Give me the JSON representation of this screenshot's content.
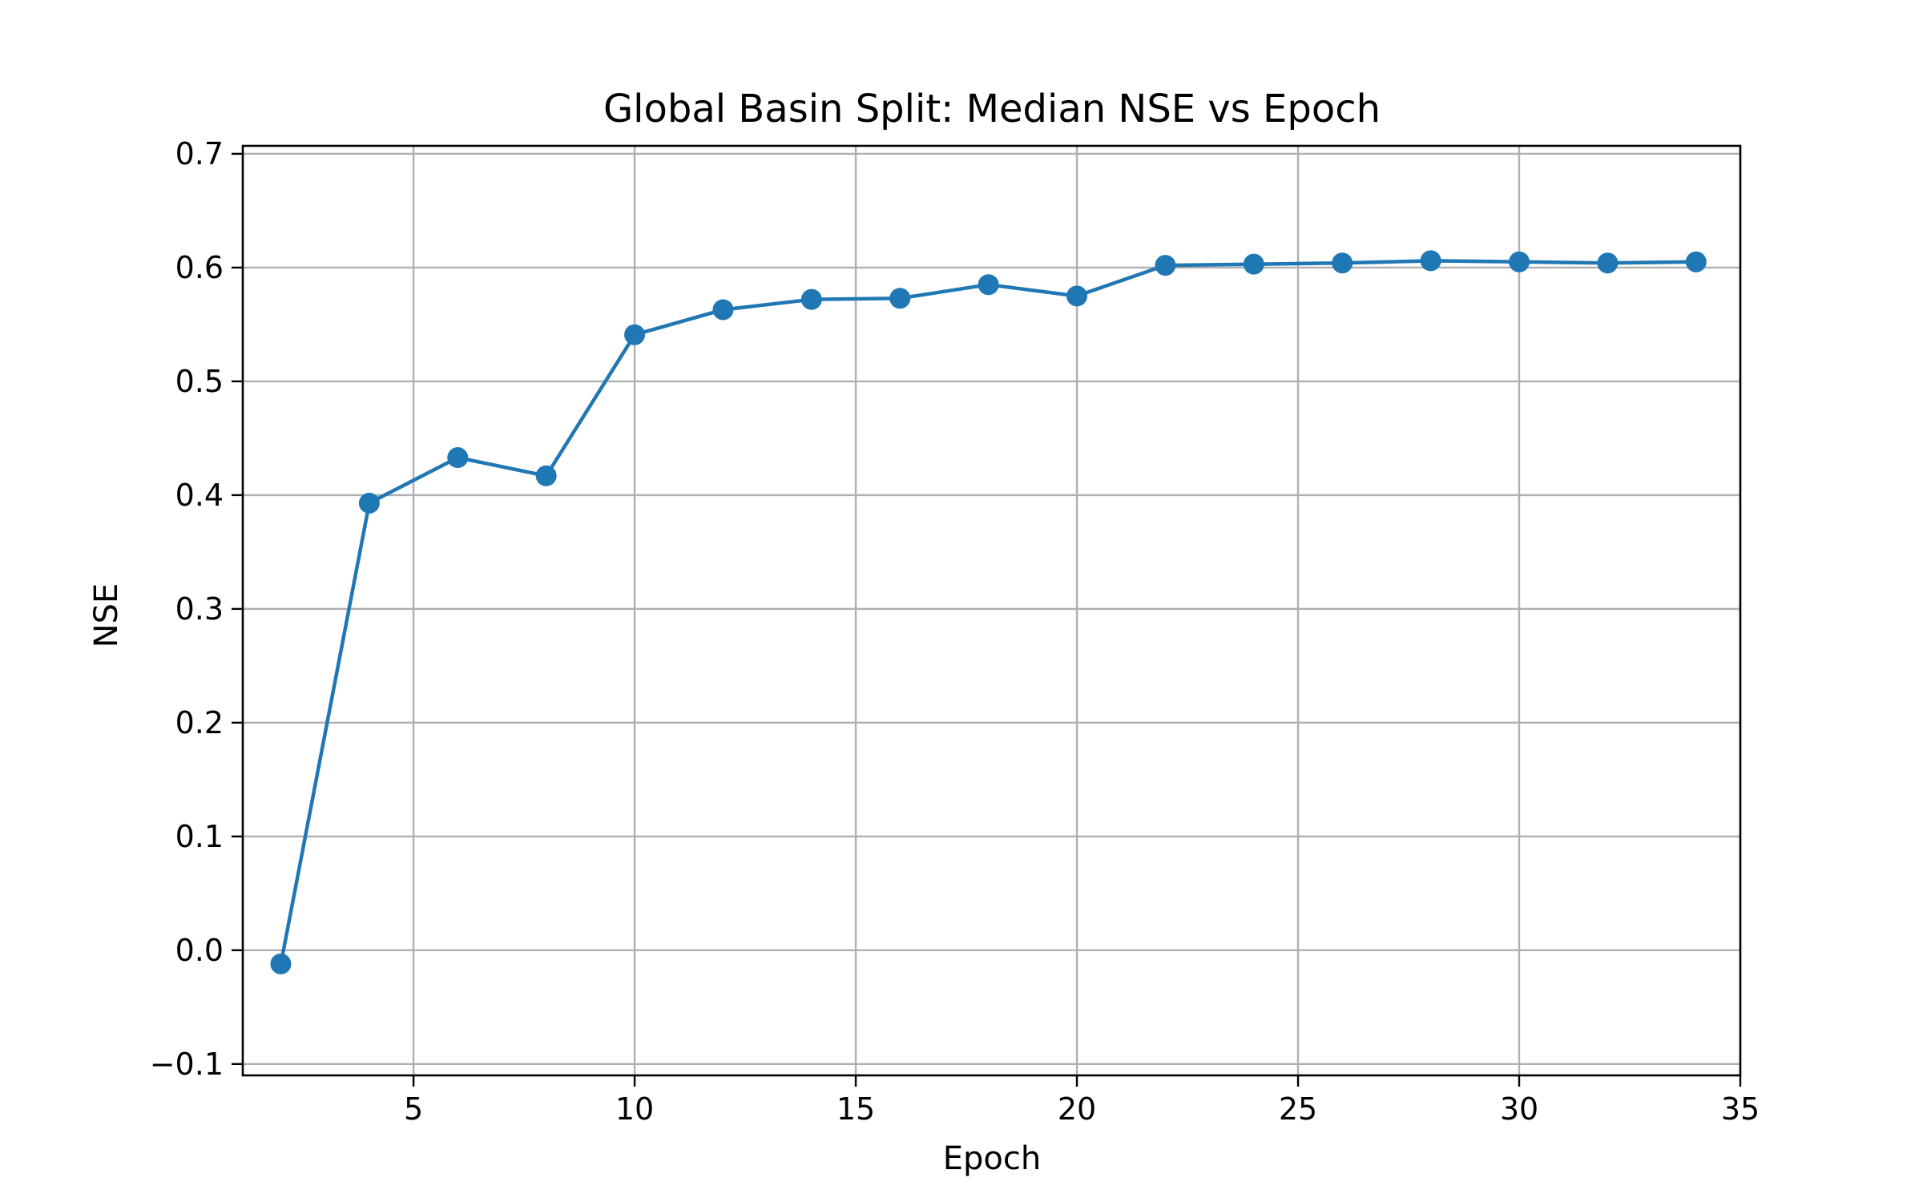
{
  "chart_data": {
    "type": "line",
    "title": "Global Basin Split: Median NSE vs Epoch",
    "xlabel": "Epoch",
    "ylabel": "NSE",
    "xlim": [
      1.14,
      35
    ],
    "ylim": [
      -0.11,
      0.707
    ],
    "xticks": [
      5,
      10,
      15,
      20,
      25,
      30,
      35
    ],
    "yticks": [
      -0.1,
      0.0,
      0.1,
      0.2,
      0.3,
      0.4,
      0.5,
      0.6,
      0.7
    ],
    "ytick_labels": [
      "−0.1",
      "0.0",
      "0.1",
      "0.2",
      "0.3",
      "0.4",
      "0.5",
      "0.6",
      "0.7"
    ],
    "grid": true,
    "series": [
      {
        "color": "#1f77b4",
        "marker": "circle",
        "x": [
          2,
          4,
          6,
          8,
          10,
          12,
          14,
          16,
          18,
          20,
          22,
          24,
          26,
          28,
          30,
          32,
          34
        ],
        "y": [
          -0.012,
          0.393,
          0.433,
          0.417,
          0.541,
          0.563,
          0.572,
          0.573,
          0.585,
          0.575,
          0.602,
          0.603,
          0.604,
          0.606,
          0.605,
          0.604,
          0.605
        ]
      }
    ]
  }
}
